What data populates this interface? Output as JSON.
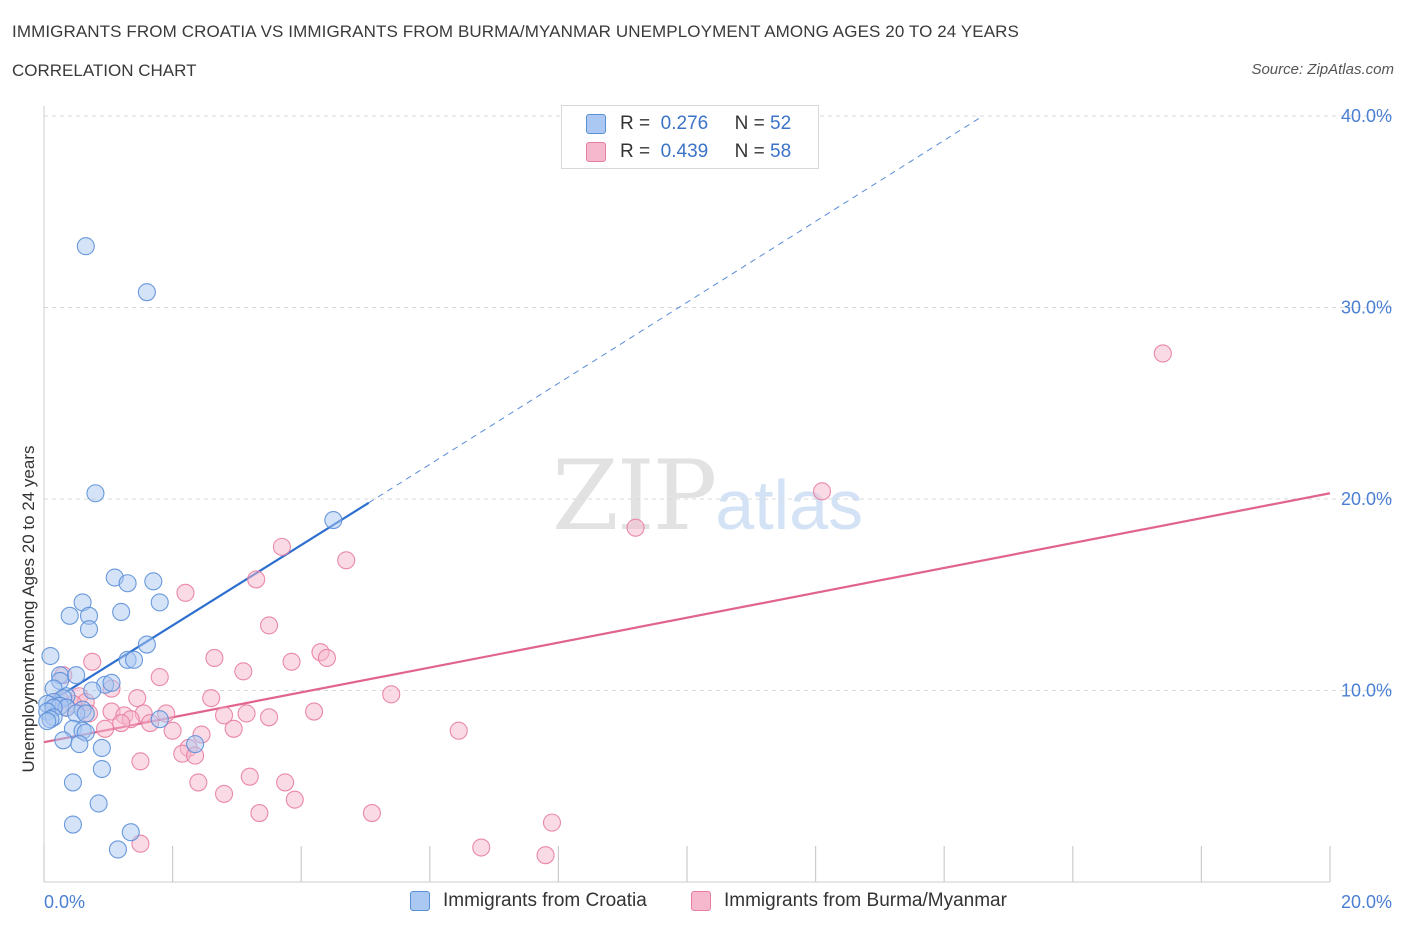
{
  "header": {
    "title": "IMMIGRANTS FROM CROATIA VS IMMIGRANTS FROM BURMA/MYANMAR UNEMPLOYMENT AMONG AGES 20 TO 24 YEARS",
    "subtitle": "CORRELATION CHART",
    "source": "Source: ZipAtlas.com"
  },
  "watermark": {
    "zip": "ZIP",
    "atlas": "atlas"
  },
  "legend": {
    "rows": [
      {
        "r_label": "R =",
        "r_value": "0.276",
        "n_label": "N =",
        "n_value": "52"
      },
      {
        "r_label": "R =",
        "r_value": "0.439",
        "n_label": "N =",
        "n_value": "58"
      }
    ]
  },
  "colors": {
    "croatia_fill": "#aac8f2",
    "croatia_stroke": "#5b8fd8",
    "croatia_line": "#2f6fcf",
    "burma_fill": "#f6b8cc",
    "burma_stroke": "#e87da0",
    "burma_line": "#e0648e",
    "grid": "#d9d9d9",
    "axis_label": "#4a7fd4"
  },
  "chart_data": {
    "type": "scatter",
    "title": "IMMIGRANTS FROM CROATIA VS IMMIGRANTS FROM BURMA/MYANMAR UNEMPLOYMENT AMONG AGES 20 TO 24 YEARS",
    "xlabel": "",
    "ylabel": "Unemployment Among Ages 20 to 24 years",
    "xlim": [
      0,
      20
    ],
    "ylim": [
      0,
      40
    ],
    "x_tick_labels": [
      "0.0%",
      "20.0%"
    ],
    "y_ticks": [
      10,
      20,
      30,
      40
    ],
    "y_tick_labels": [
      "10.0%",
      "20.0%",
      "30.0%",
      "40.0%"
    ],
    "grid": true,
    "series": [
      {
        "name": "Immigrants from Croatia",
        "points": [
          [
            0.65,
            33.2
          ],
          [
            1.6,
            30.8
          ],
          [
            0.8,
            20.3
          ],
          [
            4.5,
            18.9
          ],
          [
            1.1,
            15.9
          ],
          [
            1.7,
            15.7
          ],
          [
            1.3,
            15.6
          ],
          [
            0.6,
            14.6
          ],
          [
            1.8,
            14.6
          ],
          [
            0.4,
            13.9
          ],
          [
            0.7,
            13.9
          ],
          [
            1.2,
            14.1
          ],
          [
            0.7,
            13.2
          ],
          [
            1.6,
            12.4
          ],
          [
            0.1,
            11.8
          ],
          [
            1.3,
            11.6
          ],
          [
            1.4,
            11.6
          ],
          [
            0.25,
            10.8
          ],
          [
            0.5,
            10.8
          ],
          [
            0.25,
            10.5
          ],
          [
            0.15,
            10.1
          ],
          [
            0.95,
            10.3
          ],
          [
            1.05,
            10.4
          ],
          [
            0.75,
            10.0
          ],
          [
            0.35,
            9.7
          ],
          [
            0.3,
            9.6
          ],
          [
            0.15,
            9.4
          ],
          [
            0.05,
            9.3
          ],
          [
            0.25,
            9.2
          ],
          [
            0.35,
            9.1
          ],
          [
            0.15,
            9.1
          ],
          [
            0.6,
            9.0
          ],
          [
            0.05,
            8.9
          ],
          [
            0.5,
            8.8
          ],
          [
            0.65,
            8.8
          ],
          [
            0.15,
            8.6
          ],
          [
            0.1,
            8.5
          ],
          [
            1.8,
            8.5
          ],
          [
            0.05,
            8.4
          ],
          [
            0.45,
            8.0
          ],
          [
            0.6,
            7.9
          ],
          [
            0.65,
            7.8
          ],
          [
            0.3,
            7.4
          ],
          [
            0.55,
            7.2
          ],
          [
            0.9,
            7.0
          ],
          [
            2.35,
            7.2
          ],
          [
            0.9,
            5.9
          ],
          [
            0.45,
            5.2
          ],
          [
            0.85,
            4.1
          ],
          [
            0.45,
            3.0
          ],
          [
            1.35,
            2.6
          ],
          [
            1.15,
            1.7
          ]
        ]
      },
      {
        "name": "Immigrants from Burma/Myanmar",
        "points": [
          [
            17.4,
            27.6
          ],
          [
            12.1,
            20.4
          ],
          [
            9.2,
            18.5
          ],
          [
            3.7,
            17.5
          ],
          [
            4.7,
            16.8
          ],
          [
            3.3,
            15.8
          ],
          [
            2.2,
            15.1
          ],
          [
            3.5,
            13.4
          ],
          [
            4.3,
            12.0
          ],
          [
            1.8,
            10.7
          ],
          [
            0.75,
            11.5
          ],
          [
            2.65,
            11.7
          ],
          [
            4.4,
            11.7
          ],
          [
            3.85,
            11.5
          ],
          [
            3.1,
            11.0
          ],
          [
            1.05,
            10.1
          ],
          [
            0.3,
            10.8
          ],
          [
            0.55,
            9.7
          ],
          [
            5.4,
            9.8
          ],
          [
            2.6,
            9.6
          ],
          [
            1.45,
            9.6
          ],
          [
            0.65,
            9.4
          ],
          [
            0.25,
            9.5
          ],
          [
            0.45,
            9.3
          ],
          [
            0.35,
            9.1
          ],
          [
            0.15,
            9.1
          ],
          [
            0.7,
            8.8
          ],
          [
            1.05,
            8.9
          ],
          [
            1.55,
            8.8
          ],
          [
            1.9,
            8.8
          ],
          [
            3.15,
            8.8
          ],
          [
            2.8,
            8.7
          ],
          [
            4.2,
            8.9
          ],
          [
            1.25,
            8.7
          ],
          [
            3.5,
            8.6
          ],
          [
            1.35,
            8.5
          ],
          [
            1.2,
            8.3
          ],
          [
            1.65,
            8.3
          ],
          [
            0.95,
            8.0
          ],
          [
            2.95,
            8.0
          ],
          [
            2.0,
            7.9
          ],
          [
            6.45,
            7.9
          ],
          [
            2.45,
            7.7
          ],
          [
            2.25,
            7.0
          ],
          [
            2.15,
            6.7
          ],
          [
            2.35,
            6.6
          ],
          [
            1.5,
            6.3
          ],
          [
            3.2,
            5.5
          ],
          [
            2.4,
            5.2
          ],
          [
            3.75,
            5.2
          ],
          [
            2.8,
            4.6
          ],
          [
            3.9,
            4.3
          ],
          [
            3.35,
            3.6
          ],
          [
            5.1,
            3.6
          ],
          [
            7.9,
            3.1
          ],
          [
            6.8,
            1.8
          ],
          [
            7.8,
            1.4
          ],
          [
            1.5,
            2.0
          ]
        ]
      }
    ],
    "trendlines": [
      {
        "series": "Immigrants from Croatia",
        "from": [
          0,
          9.2
        ],
        "to": [
          5.05,
          19.8
        ],
        "style": "solid"
      },
      {
        "series": "Immigrants from Croatia",
        "from": [
          5.05,
          19.8
        ],
        "to": [
          14.6,
          40.0
        ],
        "style": "dashed"
      },
      {
        "series": "Immigrants from Burma/Myanmar",
        "from": [
          0,
          7.3
        ],
        "to": [
          20.0,
          20.3
        ],
        "style": "solid"
      }
    ],
    "legend_position": "top-center"
  }
}
